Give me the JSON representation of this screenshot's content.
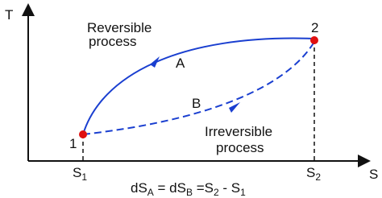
{
  "axes": {
    "y_label": "T",
    "x_label": "S"
  },
  "points": [
    {
      "label": "1"
    },
    {
      "label": "2"
    }
  ],
  "curves": [
    {
      "label": "A",
      "caption": [
        "Reversible",
        "process"
      ]
    },
    {
      "label": "B",
      "caption": [
        "Irreversible",
        "process"
      ]
    }
  ],
  "x_ticks": [
    {
      "text": "S",
      "sub": "1"
    },
    {
      "text": "S",
      "sub": "2"
    }
  ],
  "equation": [
    {
      "text": "dS",
      "sub": "A"
    },
    {
      "text": " = dS",
      "sub": "B"
    },
    {
      "text": " =S",
      "sub": "2"
    },
    {
      "text": " - S",
      "sub": "1"
    }
  ]
}
